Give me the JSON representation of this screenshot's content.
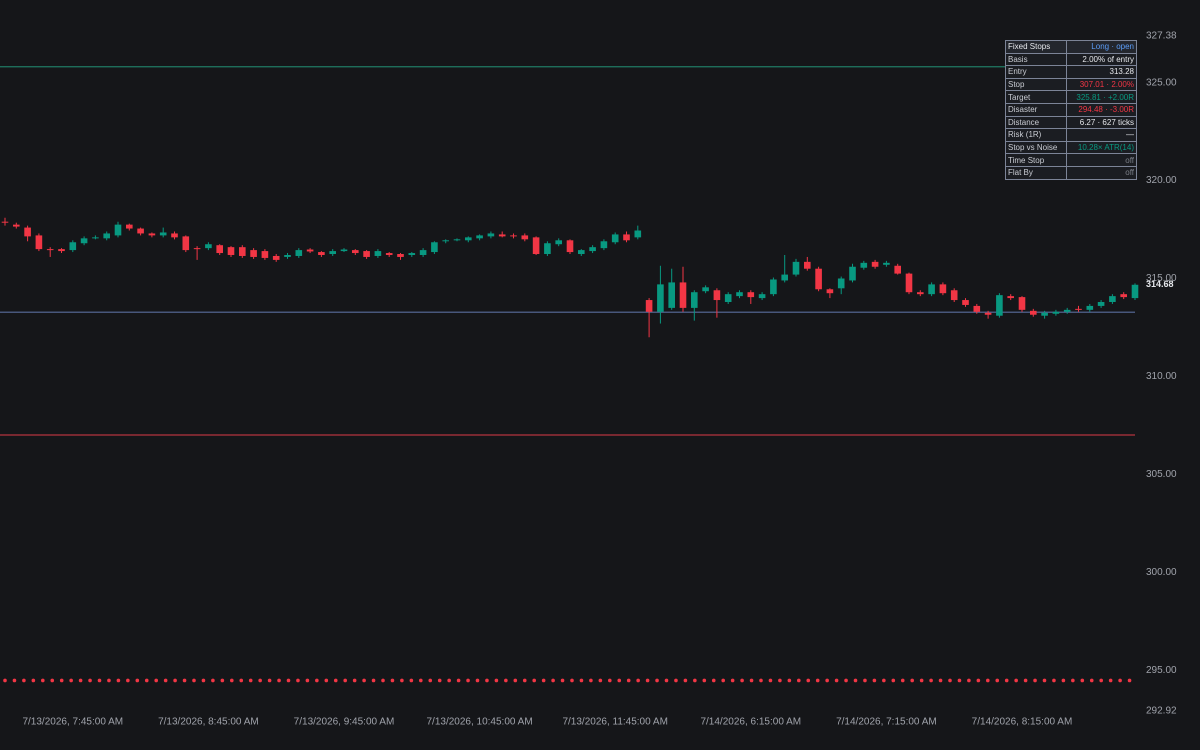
{
  "chart_data": {
    "type": "candlestick",
    "up_color": "#089981",
    "down_color": "#f23645",
    "ylim": [
      292.92,
      327.38
    ],
    "yticks": [
      {
        "value": 292.92,
        "label": "292.92"
      },
      {
        "value": 295,
        "label": "295.00"
      },
      {
        "value": 300,
        "label": "300.00"
      },
      {
        "value": 305,
        "label": "305.00"
      },
      {
        "value": 310,
        "label": "310.00"
      },
      {
        "value": 315,
        "label": "315.00"
      },
      {
        "value": 320,
        "label": "320.00"
      },
      {
        "value": 325,
        "label": "325.00"
      },
      {
        "value": 327.38,
        "label": "327.38"
      }
    ],
    "categories": [
      null,
      null,
      null,
      null,
      null,
      null,
      "7/13/2026, 7:45:00 AM",
      null,
      null,
      null,
      null,
      null,
      null,
      null,
      null,
      null,
      null,
      null,
      "7/13/2026, 8:45:00 AM",
      null,
      null,
      null,
      null,
      null,
      null,
      null,
      null,
      null,
      null,
      null,
      "7/13/2026, 9:45:00 AM",
      null,
      null,
      null,
      null,
      null,
      null,
      null,
      null,
      null,
      null,
      null,
      "7/13/2026, 10:45:00 AM",
      null,
      null,
      null,
      null,
      null,
      null,
      null,
      null,
      null,
      null,
      null,
      "7/13/2026, 11:45:00 AM",
      null,
      null,
      null,
      null,
      null,
      null,
      null,
      null,
      null,
      null,
      null,
      "7/14/2026, 6:15:00 AM",
      null,
      null,
      null,
      null,
      null,
      null,
      null,
      null,
      null,
      null,
      null,
      "7/14/2026, 7:15:00 AM",
      null,
      null,
      null,
      null,
      null,
      null,
      null,
      null,
      null,
      null,
      null,
      "7/14/2026, 8:15:00 AM",
      null,
      null,
      null,
      null,
      null,
      null,
      null,
      null,
      null,
      null
    ],
    "open": [
      317.9,
      317.75,
      317.6,
      317.2,
      316.5,
      316.5,
      316.45,
      316.8,
      317.08,
      317.05,
      317.2,
      317.75,
      317.55,
      317.3,
      317.2,
      317.3,
      317.15,
      316.55,
      316.55,
      316.7,
      316.6,
      316.6,
      316.45,
      316.4,
      316.15,
      316.1,
      316.15,
      316.48,
      316.35,
      316.25,
      316.4,
      316.45,
      316.4,
      316.15,
      316.3,
      316.25,
      316.2,
      316.2,
      316.35,
      316.9,
      316.95,
      316.95,
      317.05,
      317.15,
      317.25,
      317.2,
      317.2,
      317.1,
      316.25,
      316.75,
      316.95,
      316.25,
      316.4,
      316.55,
      316.85,
      317.25,
      317.1,
      313.9,
      313.3,
      313.5,
      314.8,
      313.5,
      314.35,
      314.4,
      313.8,
      314.1,
      314.3,
      314.0,
      314.2,
      314.9,
      315.2,
      315.85,
      315.5,
      314.45,
      314.5,
      314.9,
      315.55,
      315.85,
      315.7,
      315.65,
      315.25,
      314.3,
      314.2,
      314.7,
      314.4,
      313.9,
      313.6,
      313.25,
      313.1,
      314.1,
      314.05,
      313.35,
      313.1,
      313.2,
      313.3,
      313.45,
      313.4,
      313.6,
      313.8,
      314.2,
      314.0
    ],
    "high": [
      318.1,
      317.85,
      317.7,
      317.3,
      316.6,
      316.55,
      316.95,
      317.15,
      317.2,
      317.4,
      317.9,
      317.8,
      317.6,
      317.35,
      317.6,
      317.4,
      317.2,
      316.65,
      316.85,
      316.75,
      316.65,
      316.7,
      316.55,
      316.5,
      316.25,
      316.3,
      316.55,
      316.55,
      316.4,
      316.5,
      316.55,
      316.5,
      316.45,
      316.5,
      316.35,
      316.3,
      316.35,
      316.55,
      316.9,
      317.0,
      317.05,
      317.15,
      317.25,
      317.4,
      317.4,
      317.3,
      317.3,
      317.15,
      316.9,
      317.05,
      317.0,
      316.5,
      316.7,
      317.0,
      317.35,
      317.4,
      317.7,
      314.0,
      315.65,
      315.5,
      315.6,
      314.4,
      314.65,
      314.5,
      314.3,
      314.4,
      314.4,
      314.3,
      315.05,
      316.2,
      316.0,
      316.1,
      315.6,
      314.5,
      315.1,
      315.75,
      315.9,
      315.95,
      315.9,
      315.75,
      315.3,
      314.4,
      314.8,
      314.8,
      314.5,
      314.0,
      313.7,
      313.35,
      314.25,
      314.2,
      314.1,
      313.45,
      313.35,
      313.4,
      313.5,
      313.6,
      313.7,
      313.9,
      314.2,
      314.3,
      314.75
    ],
    "low": [
      317.7,
      317.55,
      316.9,
      316.4,
      316.1,
      316.3,
      316.35,
      316.7,
      317.0,
      316.95,
      317.1,
      317.45,
      317.2,
      317.1,
      317.1,
      317.0,
      316.35,
      315.95,
      316.45,
      316.2,
      316.1,
      316.05,
      316.0,
      315.95,
      315.85,
      316.0,
      316.05,
      316.3,
      316.1,
      316.15,
      316.35,
      316.2,
      316.0,
      316.05,
      316.1,
      315.95,
      316.1,
      316.1,
      316.25,
      316.8,
      316.9,
      316.85,
      316.95,
      317.05,
      317.1,
      317.05,
      316.9,
      316.2,
      316.15,
      316.65,
      316.25,
      316.15,
      316.3,
      316.45,
      316.75,
      316.85,
      317.0,
      312.0,
      312.7,
      313.4,
      313.3,
      312.85,
      314.25,
      313.0,
      313.7,
      314.0,
      313.7,
      313.9,
      314.1,
      314.8,
      315.1,
      315.4,
      314.35,
      314.0,
      314.2,
      314.8,
      315.45,
      315.5,
      315.6,
      315.2,
      314.2,
      314.1,
      314.1,
      314.15,
      313.8,
      313.55,
      313.2,
      312.95,
      313.0,
      313.9,
      313.3,
      313.05,
      312.95,
      313.1,
      313.2,
      313.3,
      313.3,
      313.5,
      313.7,
      313.95,
      313.9
    ],
    "close": [
      317.85,
      317.65,
      317.15,
      316.5,
      316.45,
      316.4,
      316.85,
      317.05,
      317.1,
      317.3,
      317.75,
      317.55,
      317.3,
      317.2,
      317.35,
      317.1,
      316.45,
      316.5,
      316.75,
      316.3,
      316.2,
      316.15,
      316.1,
      316.05,
      315.95,
      316.2,
      316.45,
      316.38,
      316.2,
      316.4,
      316.48,
      316.3,
      316.1,
      316.4,
      316.2,
      316.1,
      316.3,
      316.45,
      316.85,
      316.95,
      317.0,
      317.1,
      317.2,
      317.3,
      317.15,
      317.15,
      317.0,
      316.25,
      316.8,
      316.95,
      316.35,
      316.45,
      316.6,
      316.9,
      317.25,
      316.95,
      317.45,
      313.3,
      314.7,
      314.8,
      313.5,
      314.3,
      314.55,
      313.9,
      314.2,
      314.3,
      314.05,
      314.2,
      314.95,
      315.2,
      315.85,
      315.5,
      314.45,
      314.25,
      315.0,
      315.6,
      315.8,
      315.6,
      315.8,
      315.25,
      314.3,
      314.2,
      314.7,
      314.25,
      313.9,
      313.65,
      313.3,
      313.15,
      314.15,
      314.0,
      313.4,
      313.15,
      313.25,
      313.3,
      313.4,
      313.4,
      313.6,
      313.8,
      314.1,
      314.05,
      314.68
    ],
    "levels": [
      {
        "value": 325.81,
        "color": "#1f7a63",
        "style": "solid"
      },
      {
        "value": 313.28,
        "color": "#5a6d9e",
        "style": "solid"
      },
      {
        "value": 307.01,
        "color": "#b3343f",
        "style": "solid"
      },
      {
        "value": 294.48,
        "color": "#f23645",
        "style": "dotted"
      }
    ]
  },
  "panel": {
    "rows": [
      [
        "Fixed Stops",
        "Long · open"
      ],
      [
        "Basis",
        "2.00% of entry"
      ],
      [
        "Entry",
        "313.28"
      ],
      [
        "Stop",
        "307.01 · 2.00%"
      ],
      [
        "Target",
        "325.81 · +2.00R"
      ],
      [
        "Disaster",
        "294.48 · -3.00R"
      ],
      [
        "Distance",
        "6.27 · 627 ticks"
      ],
      [
        "Risk (1R)",
        "—"
      ],
      [
        "Stop vs Noise",
        "10.28× ATR(14)"
      ],
      [
        "Time Stop",
        "off"
      ],
      [
        "Flat By",
        "off"
      ]
    ]
  }
}
